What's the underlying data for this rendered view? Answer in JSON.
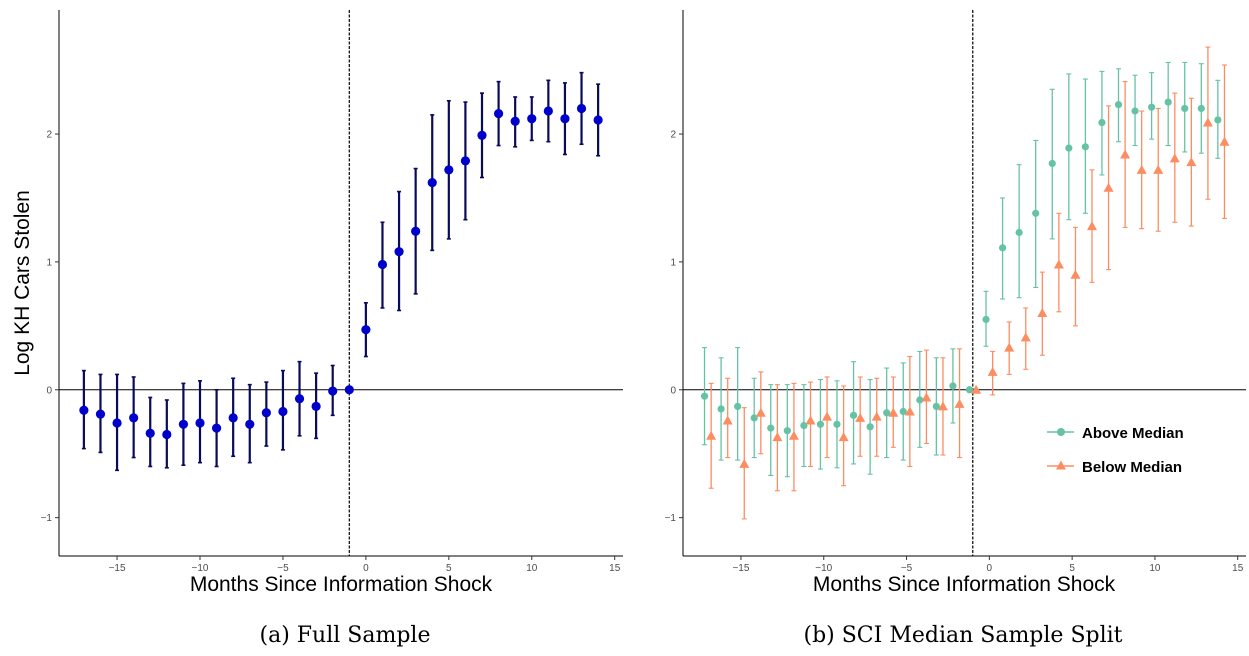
{
  "chart_data": [
    {
      "type": "scatter",
      "caption": "(a) Full Sample",
      "xlabel": "Months Since Information Shock",
      "ylabel": "Log KH Cars Stolen",
      "xlim": [
        -18.5,
        15.5
      ],
      "ylim": [
        -1.3,
        2.97
      ],
      "xticks": [
        -15,
        -10,
        -5,
        0,
        5,
        10,
        15
      ],
      "yticks": [
        -1,
        0,
        1,
        2
      ],
      "xtick_labels": [
        "−15",
        "−10",
        "−5",
        "0",
        "5",
        "10",
        "15"
      ],
      "ytick_labels": [
        "−1",
        "0",
        "1",
        "2"
      ],
      "vline": -1,
      "hline": 0,
      "series": [
        {
          "color": "#0000cc",
          "errcolor": "#0a0a5a",
          "marker": "circle",
          "x": [
            -17,
            -16,
            -15,
            -14,
            -13,
            -12,
            -11,
            -10,
            -9,
            -8,
            -7,
            -6,
            -5,
            -4,
            -3,
            -2,
            -1,
            0,
            1,
            2,
            3,
            4,
            5,
            6,
            7,
            8,
            9,
            10,
            11,
            12,
            13,
            14
          ],
          "y": [
            -0.16,
            -0.19,
            -0.26,
            -0.22,
            -0.34,
            -0.35,
            -0.27,
            -0.26,
            -0.3,
            -0.22,
            -0.27,
            -0.18,
            -0.17,
            -0.07,
            -0.13,
            -0.01,
            0,
            0.47,
            0.98,
            1.08,
            1.24,
            1.62,
            1.72,
            1.79,
            1.99,
            2.16,
            2.1,
            2.12,
            2.18,
            2.12,
            2.2,
            2.11
          ],
          "lo": [
            -0.46,
            -0.49,
            -0.63,
            -0.53,
            -0.6,
            -0.61,
            -0.59,
            -0.57,
            -0.6,
            -0.52,
            -0.57,
            -0.44,
            -0.47,
            -0.36,
            -0.38,
            -0.2,
            0,
            0.26,
            0.64,
            0.62,
            0.75,
            1.09,
            1.18,
            1.33,
            1.66,
            1.91,
            1.9,
            1.95,
            1.94,
            1.84,
            1.92,
            1.83
          ],
          "hi": [
            0.15,
            0.12,
            0.12,
            0.1,
            -0.06,
            -0.08,
            0.05,
            0.07,
            0.0,
            0.09,
            0.04,
            0.06,
            0.15,
            0.22,
            0.13,
            0.19,
            0,
            0.68,
            1.31,
            1.55,
            1.73,
            2.15,
            2.26,
            2.25,
            2.32,
            2.41,
            2.29,
            2.29,
            2.42,
            2.4,
            2.48,
            2.39
          ]
        }
      ],
      "legend": null
    },
    {
      "type": "scatter",
      "caption": "(b) SCI Median Sample Split",
      "xlabel": "Months Since Information Shock",
      "ylabel": "",
      "xlim": [
        -18.5,
        15.5
      ],
      "ylim": [
        -1.3,
        2.97
      ],
      "xticks": [
        -15,
        -10,
        -5,
        0,
        5,
        10,
        15
      ],
      "yticks": [
        -1,
        0,
        1,
        2
      ],
      "xtick_labels": [
        "−15",
        "−10",
        "−5",
        "0",
        "5",
        "10",
        "15"
      ],
      "ytick_labels": [
        "−1",
        "0",
        "1",
        "2"
      ],
      "vline": -1,
      "hline": 0,
      "dodge": 0.2,
      "legend": "inside-right",
      "series": [
        {
          "name": "Above Median",
          "color": "#66c2a5",
          "marker": "circle",
          "dx": -0.2,
          "x": [
            -17,
            -16,
            -15,
            -14,
            -13,
            -12,
            -11,
            -10,
            -9,
            -8,
            -7,
            -6,
            -5,
            -4,
            -3,
            -2,
            -1,
            0,
            1,
            2,
            3,
            4,
            5,
            6,
            7,
            8,
            9,
            10,
            11,
            12,
            13,
            14
          ],
          "y": [
            -0.05,
            -0.15,
            -0.13,
            -0.22,
            -0.3,
            -0.32,
            -0.28,
            -0.27,
            -0.27,
            -0.2,
            -0.29,
            -0.18,
            -0.17,
            -0.08,
            -0.13,
            0.03,
            0,
            0.55,
            1.11,
            1.23,
            1.38,
            1.77,
            1.89,
            1.9,
            2.09,
            2.23,
            2.18,
            2.21,
            2.25,
            2.2,
            2.2,
            2.11
          ],
          "lo": [
            -0.43,
            -0.55,
            -0.55,
            -0.53,
            -0.67,
            -0.68,
            -0.6,
            -0.62,
            -0.61,
            -0.58,
            -0.66,
            -0.53,
            -0.55,
            -0.45,
            -0.51,
            -0.26,
            0,
            0.34,
            0.71,
            0.72,
            0.8,
            1.18,
            1.33,
            1.38,
            1.68,
            1.94,
            1.91,
            1.96,
            1.91,
            1.86,
            1.85,
            1.81
          ],
          "hi": [
            0.33,
            0.25,
            0.33,
            0.09,
            0.04,
            0.04,
            0.04,
            0.08,
            0.07,
            0.22,
            0.08,
            0.17,
            0.21,
            0.3,
            0.25,
            0.32,
            0,
            0.77,
            1.5,
            1.76,
            1.95,
            2.35,
            2.47,
            2.43,
            2.49,
            2.51,
            2.46,
            2.48,
            2.56,
            2.56,
            2.55,
            2.42
          ]
        },
        {
          "name": "Below Median",
          "color": "#fc8d62",
          "marker": "triangle",
          "dx": 0.2,
          "x": [
            -17,
            -16,
            -15,
            -14,
            -13,
            -12,
            -11,
            -10,
            -9,
            -8,
            -7,
            -6,
            -5,
            -4,
            -3,
            -2,
            -1,
            0,
            1,
            2,
            3,
            4,
            5,
            6,
            7,
            8,
            9,
            10,
            11,
            12,
            13,
            14
          ],
          "y": [
            -0.36,
            -0.24,
            -0.58,
            -0.18,
            -0.37,
            -0.36,
            -0.24,
            -0.21,
            -0.37,
            -0.22,
            -0.21,
            -0.18,
            -0.17,
            -0.06,
            -0.13,
            -0.11,
            0,
            0.14,
            0.33,
            0.41,
            0.6,
            0.98,
            0.9,
            1.28,
            1.58,
            1.84,
            1.72,
            1.72,
            1.81,
            1.78,
            2.09,
            1.94
          ],
          "lo": [
            -0.77,
            -0.53,
            -1.01,
            -0.5,
            -0.79,
            -0.79,
            -0.6,
            -0.53,
            -0.75,
            -0.52,
            -0.52,
            -0.45,
            -0.6,
            -0.42,
            -0.51,
            -0.53,
            0,
            -0.04,
            0.12,
            0.16,
            0.27,
            0.61,
            0.5,
            0.84,
            0.94,
            1.27,
            1.26,
            1.24,
            1.31,
            1.28,
            1.49,
            1.34
          ],
          "hi": [
            0.05,
            0.09,
            -0.14,
            0.14,
            0.04,
            0.05,
            0.06,
            0.1,
            0.03,
            0.1,
            0.09,
            0.1,
            0.26,
            0.31,
            0.25,
            0.32,
            0,
            0.3,
            0.53,
            0.64,
            0.92,
            1.38,
            1.27,
            1.72,
            2.22,
            2.41,
            2.18,
            2.2,
            2.32,
            2.28,
            2.68,
            2.54
          ]
        }
      ]
    }
  ]
}
